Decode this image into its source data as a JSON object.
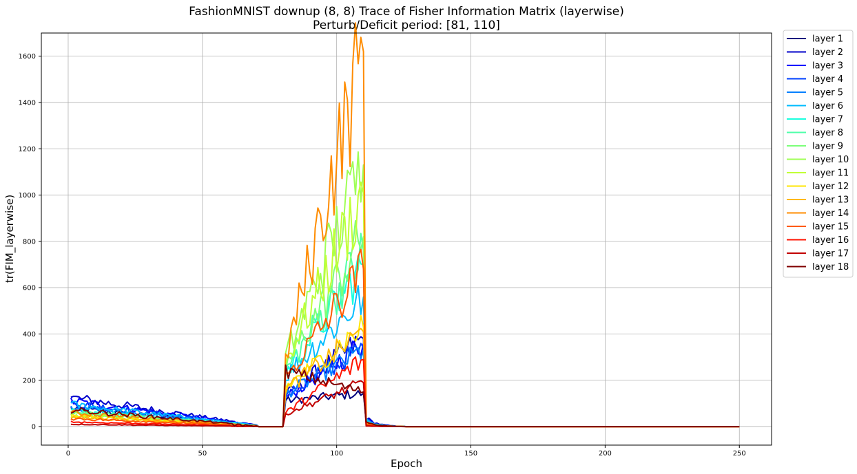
{
  "chart_data": {
    "type": "line",
    "title": "FashionMNIST downup (8, 8) Trace of Fisher Information Matrix (layerwise)",
    "subtitle": "Perturb/Deficit period: [81, 110]",
    "xlabel": "Epoch",
    "ylabel": "tr(FIM_layerwise)",
    "xlim": [
      -10,
      262
    ],
    "ylim": [
      -80,
      1700
    ],
    "xticks": [
      0,
      50,
      100,
      150,
      200,
      250
    ],
    "yticks": [
      0,
      200,
      400,
      600,
      800,
      1000,
      1200,
      1400,
      1600
    ],
    "grid": true,
    "legend_position": "outside-top-right",
    "series": [
      {
        "name": "layer 1",
        "color": "#00007f",
        "pre": [
          78,
          5
        ],
        "peak": [
          112,
          144
        ],
        "noise": 0.3
      },
      {
        "name": "layer 2",
        "color": "#0000c9",
        "pre": [
          125,
          8
        ],
        "peak": [
          135,
          380
        ],
        "noise": 0.35
      },
      {
        "name": "layer 3",
        "color": "#0000ff",
        "pre": [
          110,
          7
        ],
        "peak": [
          125,
          360
        ],
        "noise": 0.35
      },
      {
        "name": "layer 4",
        "color": "#0040ff",
        "pre": [
          100,
          6
        ],
        "peak": [
          130,
          340
        ],
        "noise": 0.33
      },
      {
        "name": "layer 5",
        "color": "#0080ff",
        "pre": [
          85,
          6
        ],
        "peak": [
          140,
          330
        ],
        "noise": 0.33
      },
      {
        "name": "layer 6",
        "color": "#00bcff",
        "pre": [
          95,
          6
        ],
        "peak": [
          220,
          560
        ],
        "noise": 0.35
      },
      {
        "name": "layer 7",
        "color": "#19ffde",
        "pre": [
          70,
          5
        ],
        "peak": [
          230,
          700
        ],
        "noise": 0.35
      },
      {
        "name": "layer 8",
        "color": "#4effa9",
        "pre": [
          65,
          5
        ],
        "peak": [
          240,
          760
        ],
        "noise": 0.35
      },
      {
        "name": "layer 9",
        "color": "#7cff79",
        "pre": [
          60,
          4
        ],
        "peak": [
          260,
          820
        ],
        "noise": 0.36
      },
      {
        "name": "layer 10",
        "color": "#9fff56",
        "pre": [
          55,
          4
        ],
        "peak": [
          300,
          1130
        ],
        "noise": 0.38
      },
      {
        "name": "layer 11",
        "color": "#c1ff36",
        "pre": [
          50,
          4
        ],
        "peak": [
          280,
          1010
        ],
        "noise": 0.37
      },
      {
        "name": "layer 12",
        "color": "#ffe600",
        "pre": [
          45,
          3
        ],
        "peak": [
          170,
          430
        ],
        "noise": 0.33
      },
      {
        "name": "layer 13",
        "color": "#ffb900",
        "pre": [
          40,
          3
        ],
        "peak": [
          160,
          410
        ],
        "noise": 0.33
      },
      {
        "name": "layer 14",
        "color": "#ff8c00",
        "pre": [
          60,
          4
        ],
        "peak": [
          300,
          1620
        ],
        "noise": 0.4
      },
      {
        "name": "layer 15",
        "color": "#ff5a00",
        "pre": [
          35,
          3
        ],
        "peak": [
          210,
          680
        ],
        "noise": 0.36
      },
      {
        "name": "layer 16",
        "color": "#ff1300",
        "pre": [
          20,
          2
        ],
        "peak": [
          60,
          290
        ],
        "noise": 0.35
      },
      {
        "name": "layer 17",
        "color": "#c10000",
        "pre": [
          10,
          1
        ],
        "peak": [
          55,
          190
        ],
        "noise": 0.3
      },
      {
        "name": "layer 18",
        "color": "#7f0000",
        "pre": [
          72,
          3
        ],
        "peak": [
          240,
          150
        ],
        "noise": 0.25
      }
    ]
  }
}
